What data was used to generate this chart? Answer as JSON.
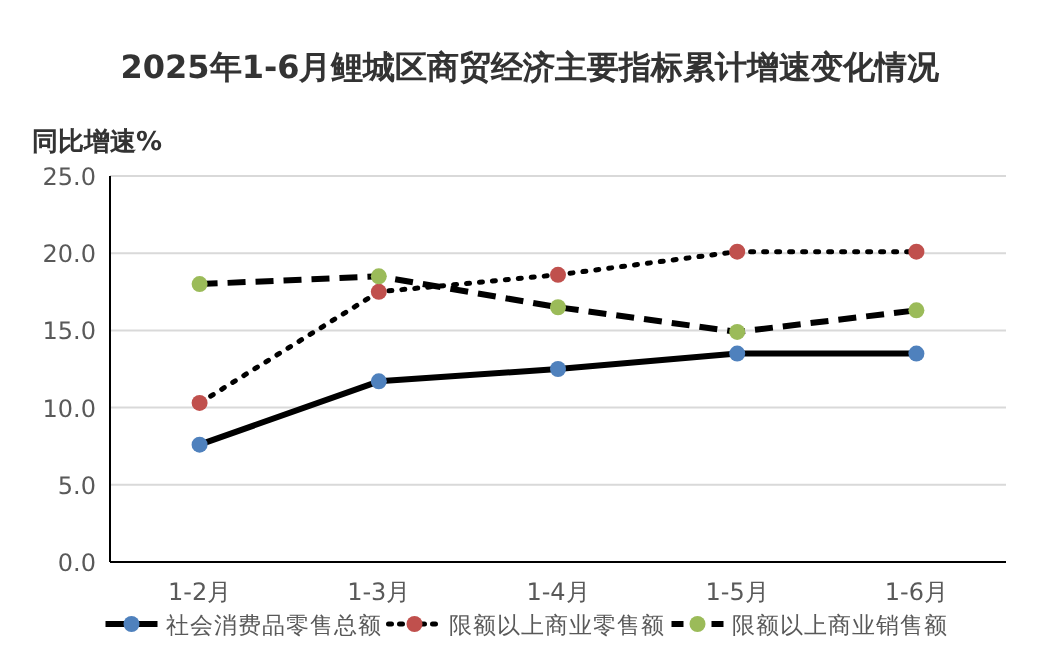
{
  "chart_data": {
    "type": "line",
    "title": "2025年1-6月鲤城区商贸经济主要指标累计增速变化情况",
    "ylabel": "同比增速%",
    "categories": [
      "1-2月",
      "1-3月",
      "1-4月",
      "1-5月",
      "1-6月"
    ],
    "series": [
      {
        "name": "社会消费品零售总额",
        "color": "#4f81bd",
        "line_style": "solid",
        "values": [
          7.6,
          11.7,
          12.5,
          13.5,
          13.5
        ]
      },
      {
        "name": "限额以上商业零售额",
        "color": "#c0504d",
        "line_style": "dotted",
        "values": [
          10.3,
          17.5,
          18.6,
          20.1,
          20.1
        ]
      },
      {
        "name": "限额以上商业销售额",
        "color": "#9bbb59",
        "line_style": "dashed",
        "values": [
          18.0,
          18.5,
          16.5,
          14.9,
          16.3
        ]
      }
    ],
    "ylim": [
      0,
      25
    ],
    "yticks": [
      {
        "value": 0,
        "label": "0.0"
      },
      {
        "value": 5,
        "label": "5.0"
      },
      {
        "value": 10,
        "label": "10.0"
      },
      {
        "value": 15,
        "label": "15.0"
      },
      {
        "value": 20,
        "label": "20.0"
      },
      {
        "value": 25,
        "label": "25.0"
      }
    ],
    "grid": "y",
    "legend": "bottom",
    "marker": "circle"
  }
}
